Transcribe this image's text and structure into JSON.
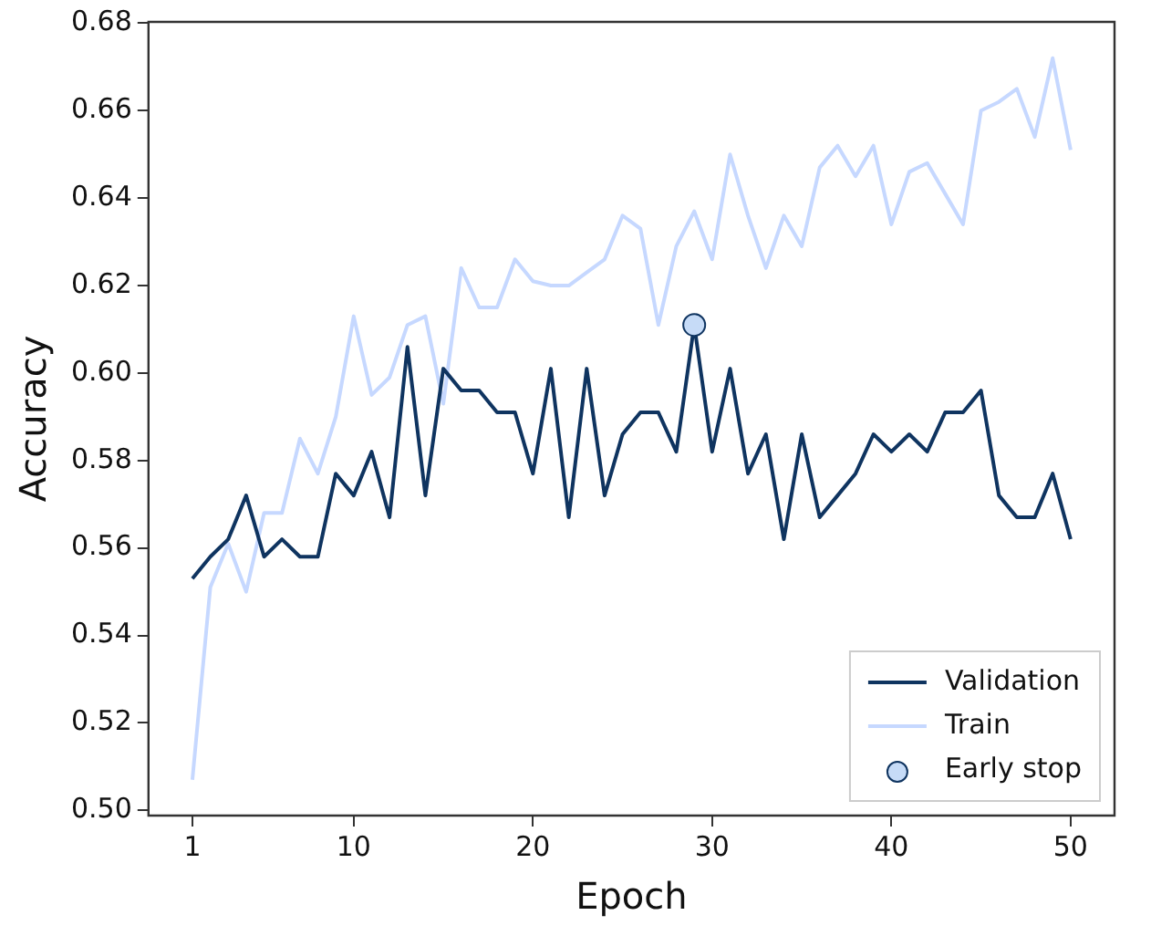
{
  "chart_data": {
    "type": "line",
    "xlabel": "Epoch",
    "ylabel": "Accuracy",
    "x": [
      1,
      2,
      3,
      4,
      5,
      6,
      7,
      8,
      9,
      10,
      11,
      12,
      13,
      14,
      15,
      16,
      17,
      18,
      19,
      20,
      21,
      22,
      23,
      24,
      25,
      26,
      27,
      28,
      29,
      30,
      31,
      32,
      33,
      34,
      35,
      36,
      37,
      38,
      39,
      40,
      41,
      42,
      43,
      44,
      45,
      46,
      47,
      48,
      49,
      50
    ],
    "series": [
      {
        "name": "Validation",
        "color": "#0f3460",
        "values": [
          0.553,
          0.558,
          0.562,
          0.572,
          0.558,
          0.562,
          0.558,
          0.558,
          0.577,
          0.572,
          0.582,
          0.567,
          0.606,
          0.572,
          0.601,
          0.596,
          0.596,
          0.591,
          0.591,
          0.577,
          0.601,
          0.567,
          0.601,
          0.572,
          0.586,
          0.591,
          0.591,
          0.582,
          0.611,
          0.582,
          0.601,
          0.577,
          0.586,
          0.562,
          0.586,
          0.567,
          0.572,
          0.577,
          0.586,
          0.582,
          0.586,
          0.582,
          0.591,
          0.591,
          0.596,
          0.572,
          0.567,
          0.567,
          0.577,
          0.562
        ]
      },
      {
        "name": "Train",
        "color": "#c6d8ff",
        "values": [
          0.507,
          0.551,
          0.561,
          0.55,
          0.568,
          0.568,
          0.585,
          0.577,
          0.59,
          0.613,
          0.595,
          0.599,
          0.611,
          0.613,
          0.593,
          0.624,
          0.615,
          0.615,
          0.626,
          0.621,
          0.62,
          0.62,
          0.623,
          0.626,
          0.636,
          0.633,
          0.611,
          0.629,
          0.637,
          0.626,
          0.65,
          0.636,
          0.624,
          0.636,
          0.629,
          0.647,
          0.652,
          0.645,
          0.652,
          0.634,
          0.646,
          0.648,
          0.641,
          0.634,
          0.66,
          0.662,
          0.665,
          0.654,
          0.672,
          0.651
        ]
      },
      {
        "name": "Early stop",
        "type": "scatter",
        "marker": "circle",
        "color": "#c6dbf7",
        "x": [
          29
        ],
        "values": [
          0.611
        ]
      }
    ],
    "xlim": [
      -1.45,
      52.45
    ],
    "xticks": [
      1,
      10,
      20,
      30,
      40,
      50
    ],
    "ylim": [
      0.4988,
      0.6803
    ],
    "yticks": [
      {
        "value": 0.5,
        "label": "0.50"
      },
      {
        "value": 0.52,
        "label": "0.52"
      },
      {
        "value": 0.54,
        "label": "0.54"
      },
      {
        "value": 0.56,
        "label": "0.56"
      },
      {
        "value": 0.58,
        "label": "0.58"
      },
      {
        "value": 0.6,
        "label": "0.60"
      },
      {
        "value": 0.62,
        "label": "0.62"
      },
      {
        "value": 0.64,
        "label": "0.64"
      },
      {
        "value": 0.66,
        "label": "0.66"
      },
      {
        "value": 0.68,
        "label": "0.68"
      }
    ],
    "grid": false,
    "legend": "bottom right",
    "marker": "none"
  }
}
